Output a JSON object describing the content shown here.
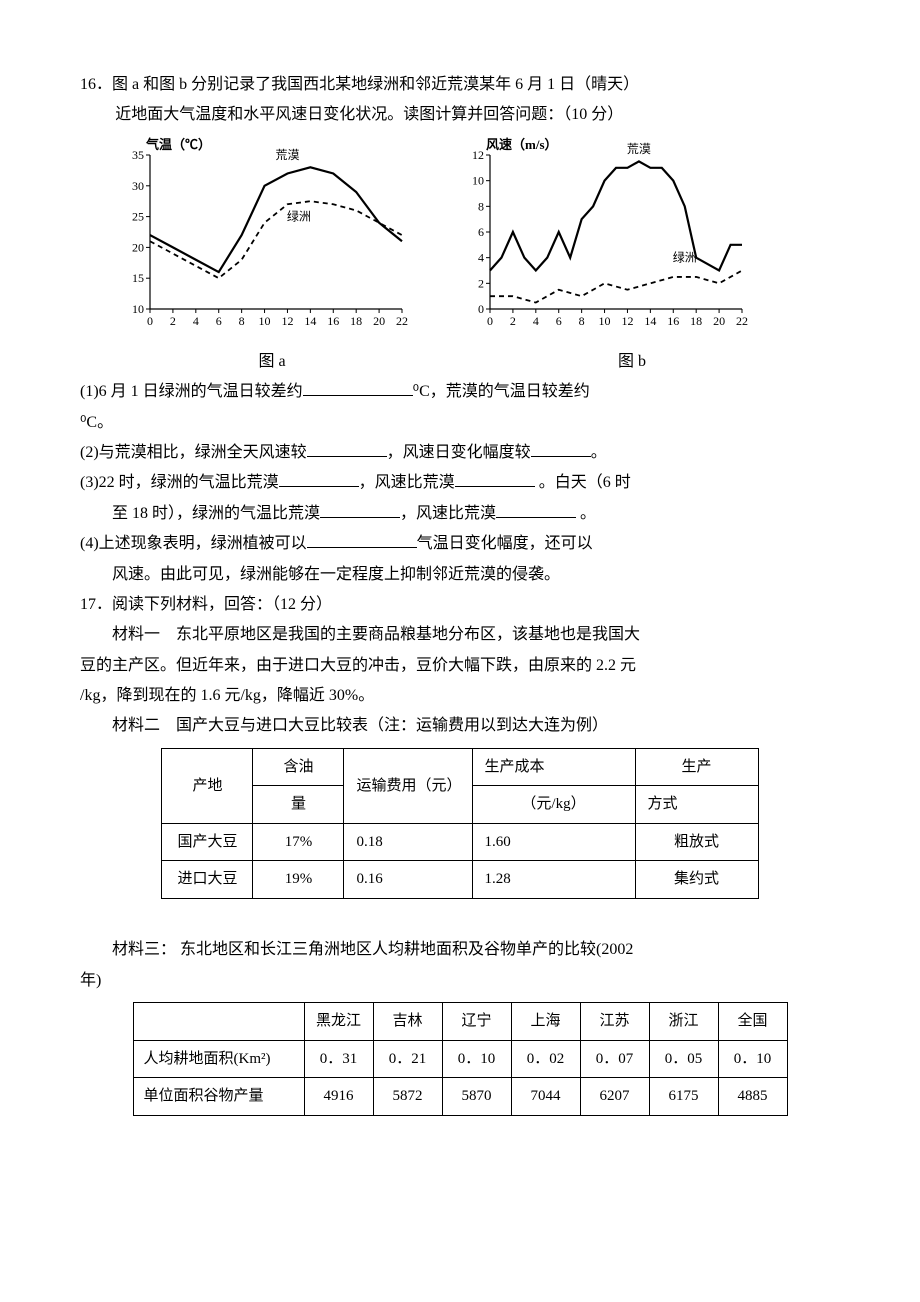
{
  "q16": {
    "number": "16．",
    "stem1": "图 a 和图 b 分别记录了我国西北某地绿洲和邻近荒漠某年 6 月 1 日（晴天）",
    "stem2": "近地面大气温度和水平风速日变化状况。读图计算并回答问题：（10 分）",
    "caption_a": "图 a",
    "caption_b": "图 b",
    "sub1_a": "(1)6 月 1 日绿洲的气温日较差约",
    "sub1_b": "⁰C，荒漠的气温日较差约",
    "sub1_c": "⁰C。",
    "sub2_a": "(2)与荒漠相比，绿洲全天风速较",
    "sub2_b": "，风速日变化幅度较",
    "sub2_c": "。",
    "sub3_a": "(3)22 时，绿洲的气温比荒漠",
    "sub3_b": "，风速比荒漠",
    "sub3_c": " 。白天（6 时",
    "sub3_d": "至 18 时），绿洲的气温比荒漠",
    "sub3_e": "，风速比荒漠",
    "sub3_f": " 。",
    "sub4_a": "(4)上述现象表明，绿洲植被可以",
    "sub4_b": "气温日变化幅度，还可以",
    "sub4_c": "风速。由此可见，绿洲能够在一定程度上抑制邻近荒漠的侵袭。"
  },
  "chart_a": {
    "type": "line",
    "y_title": "气温（℃）",
    "x_unit": "（时）",
    "xlim": [
      0,
      22
    ],
    "ylim": [
      10,
      35
    ],
    "xtick_step": 2,
    "ytick_step": 5,
    "grid_color": "#000000",
    "series": [
      {
        "name": "荒漠",
        "style": "solid",
        "x": [
          0,
          2,
          4,
          6,
          8,
          10,
          12,
          14,
          16,
          18,
          20,
          22
        ],
        "y": [
          22,
          20,
          18,
          16,
          22,
          30,
          32,
          33,
          32,
          29,
          24,
          21
        ]
      },
      {
        "name": "绿洲",
        "style": "dash",
        "x": [
          0,
          2,
          4,
          6,
          8,
          10,
          12,
          14,
          16,
          18,
          20,
          22
        ],
        "y": [
          21,
          19,
          17,
          15,
          18,
          24,
          27,
          27.5,
          27,
          26,
          24,
          22
        ]
      }
    ],
    "label_huangmo": "荒漠",
    "label_lvzhou": "绿洲",
    "label_pos_huangmo": [
      12,
      34
    ],
    "label_pos_lvzhou": [
      13,
      25
    ]
  },
  "chart_b": {
    "type": "line",
    "y_title": "风速（m/s）",
    "x_unit": "（时）",
    "xlim": [
      0,
      22
    ],
    "ylim": [
      0,
      12
    ],
    "xtick_step": 2,
    "ytick_step": 2,
    "series": [
      {
        "name": "荒漠",
        "style": "solid",
        "x": [
          0,
          1,
          2,
          3,
          4,
          5,
          6,
          7,
          8,
          9,
          10,
          11,
          12,
          13,
          14,
          15,
          16,
          17,
          18,
          19,
          20,
          21,
          22
        ],
        "y": [
          3,
          4,
          6,
          4,
          3,
          4,
          6,
          4,
          7,
          8,
          10,
          11,
          11,
          11.5,
          11,
          11,
          10,
          8,
          4,
          3.5,
          3,
          5,
          5
        ]
      },
      {
        "name": "绿洲",
        "style": "dash",
        "x": [
          0,
          2,
          4,
          6,
          8,
          10,
          12,
          14,
          16,
          18,
          20,
          22
        ],
        "y": [
          1,
          1,
          0.5,
          1.5,
          1,
          2,
          1.5,
          2,
          2.5,
          2.5,
          2,
          3
        ]
      }
    ],
    "label_huangmo": "荒漠",
    "label_lvzhou": "绿洲",
    "label_pos_huangmo": [
      13,
      12
    ],
    "label_pos_lvzhou": [
      17,
      4
    ]
  },
  "q17": {
    "number": "17．",
    "stem": "阅读下列材料，回答：（12 分）",
    "m1_head": "材料一",
    "m1_l1": "东北平原地区是我国的主要商品粮基地分布区，该基地也是我国大",
    "m1_l2": "豆的主产区。但近年来，由于进口大豆的冲击，豆价大幅下跌，由原来的 2.2 元",
    "m1_l3": "/kg，降到现在的 1.6 元/kg，降幅近 30%。",
    "m2_head": "材料二",
    "m2_body": "国产大豆与进口大豆比较表（注：运输费用以到达大连为例）",
    "m3_head": "材料三：",
    "m3_body1": " 东北地区和长江三角洲地区人均耕地面积及谷物单产的比较(2002",
    "m3_body2": "年)"
  },
  "table1": {
    "columns": [
      "产地",
      "含油量",
      "运输费用（元）",
      "生产成本（元/kg）",
      "生产方式"
    ],
    "col_oil_l1": "含油",
    "col_oil_l2": "量",
    "col_cost_l1": "生产成本",
    "col_cost_l2": "（元/kg）",
    "col_mode_l1": "生产",
    "col_mode_l2": "方式",
    "rows": [
      [
        "国产大豆",
        "17%",
        "0.18",
        "1.60",
        "粗放式"
      ],
      [
        "进口大豆",
        "19%",
        "0.16",
        "1.28",
        "集约式"
      ]
    ]
  },
  "table2": {
    "columns": [
      "",
      "黑龙江",
      "吉林",
      "辽宁",
      "上海",
      "江苏",
      "浙江",
      "全国"
    ],
    "rows": [
      [
        "人均耕地面积(Km²)",
        "0．31",
        "0．21",
        "0．10",
        "0．02",
        "0．07",
        "0．05",
        "0．10"
      ],
      [
        "单位面积谷物产量",
        "4916",
        "5872",
        "5870",
        "7044",
        "6207",
        "6175",
        "4885"
      ]
    ]
  }
}
